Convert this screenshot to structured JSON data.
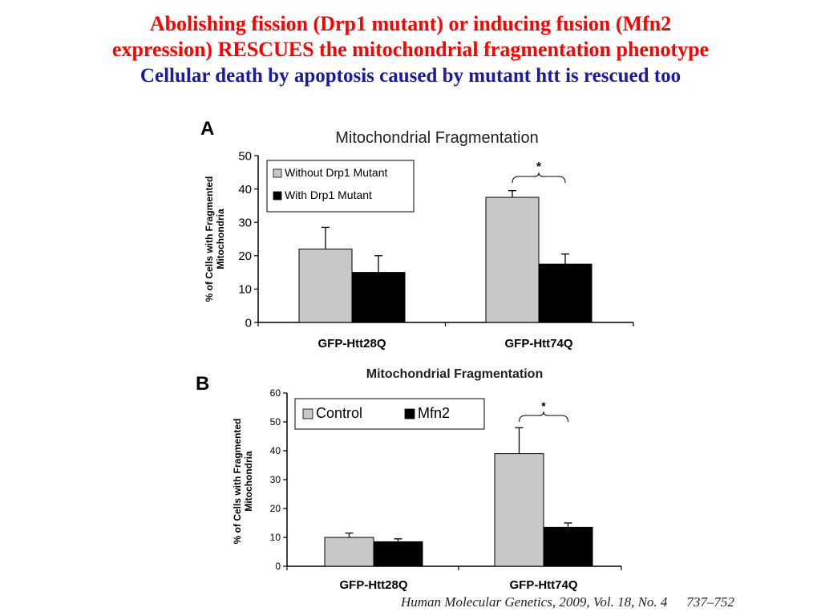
{
  "slide": {
    "title_line1": "Abolishing fission (Drp1 mutant) or inducing fusion (Mfn2",
    "title_line2": "expression) RESCUES the mitochondrial fragmentation phenotype",
    "subtitle": "Cellular death by apoptosis caused by mutant htt is rescued too",
    "citation": "Human Molecular Genetics, 2009, Vol. 18, No. 4",
    "citation_pages": "737–752",
    "colors": {
      "title": "#ff0000",
      "subtitle": "#1a1aa6"
    }
  },
  "chart_data": [
    {
      "panel": "A",
      "type": "bar",
      "title": "Mitochondrial Fragmentation",
      "xlabel": "",
      "ylabel": "% of Cells with Fragmented Mitochondria",
      "ylim": [
        0,
        50
      ],
      "yticks": [
        0,
        10,
        20,
        30,
        40,
        50
      ],
      "categories": [
        "GFP-Htt28Q",
        "GFP-Htt74Q"
      ],
      "legend_position": "top-left",
      "grid": false,
      "series": [
        {
          "name": "Without Drp1 Mutant",
          "values": [
            22,
            37.5
          ],
          "errors": [
            6.5,
            2
          ],
          "color": "#c8c8c8"
        },
        {
          "name": "With Drp1 Mutant",
          "values": [
            15,
            17.5
          ],
          "errors": [
            5,
            3
          ],
          "color": "#000000"
        }
      ],
      "annotations": [
        {
          "category": "GFP-Htt74Q",
          "text": "*"
        }
      ]
    },
    {
      "panel": "B",
      "type": "bar",
      "title": "Mitochondrial Fragmentation",
      "xlabel": "",
      "ylabel": "% of Cells with Fragmented Mitochondria",
      "ylim": [
        0,
        60
      ],
      "yticks": [
        0,
        10,
        20,
        30,
        40,
        50,
        60
      ],
      "categories": [
        "GFP-Htt28Q",
        "GFP-Htt74Q"
      ],
      "legend_position": "top-left",
      "grid": false,
      "series": [
        {
          "name": "Control",
          "values": [
            10,
            39
          ],
          "errors": [
            1.5,
            9
          ],
          "color": "#c8c8c8"
        },
        {
          "name": "Mfn2",
          "values": [
            8.5,
            13.5
          ],
          "errors": [
            1,
            1.5
          ],
          "color": "#000000"
        }
      ],
      "annotations": [
        {
          "category": "GFP-Htt74Q",
          "text": "*"
        }
      ]
    }
  ]
}
